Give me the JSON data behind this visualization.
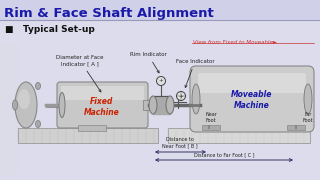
{
  "title": "Rim & Face Shaft Alignment",
  "subtitle": "■   Typical Set-up",
  "bg_top": "#dcdcec",
  "bg_body": "#c8c8e0",
  "title_color": "#1a1aaa",
  "title_bg": "#d0d0e8",
  "sep_color": "#9999bb",
  "labels": {
    "diameter_face": "Diameter at Face\nIndicator [ A ]",
    "rim_indicator": "Rim Indicator",
    "face_indicator": "Face Indicator",
    "fixed_machine": "Fixed\nMachine",
    "moveable_machine": "Moveable\nMachine",
    "near_foot": "Near\nFoot",
    "far_foot": "Far\nFoot",
    "dist_near": "Distance to\nNear Foot [ B ]",
    "dist_far": "Distance to Far Foot [ C ]",
    "view_note": "View from Fixed to Moveable►"
  },
  "colors": {
    "machine_body": "#c0c0c0",
    "machine_edge": "#888888",
    "machine_light": "#e0e0e0",
    "machine_dark": "#909090",
    "base_fill": "#cccccc",
    "base_edge": "#aaaaaa",
    "shaft": "#888888",
    "coupling": "#b0b0b0",
    "dial": "#d8d8d8",
    "fixed_label": "#cc2200",
    "move_label": "#1a1aaa",
    "annotation": "#222222",
    "view_color": "#cc3333",
    "arrow_color": "#333366",
    "foot_arrow": "#222222"
  }
}
